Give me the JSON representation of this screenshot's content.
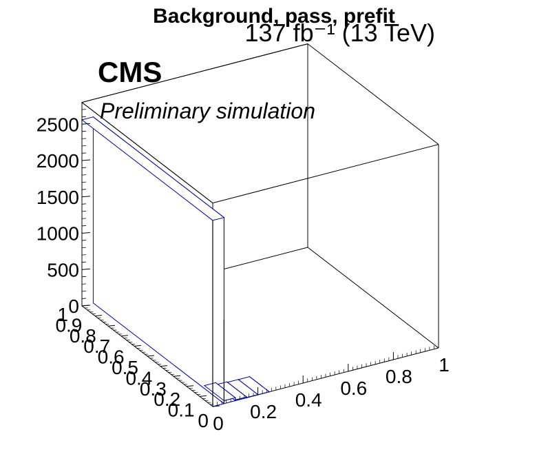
{
  "chart_data": {
    "type": "lego",
    "title": "Background, pass, prefit",
    "lumi_label": "137 fb⁻¹ (13 TeV)",
    "experiment": "CMS",
    "subtitle": "Preliminary simulation",
    "xlabel": "",
    "ylabel": "",
    "zlabel": "",
    "xlim": [
      0,
      1
    ],
    "ylim": [
      0,
      1
    ],
    "zlim": [
      0,
      2800
    ],
    "x_ticks": [
      "0",
      "0.2",
      "0.4",
      "0.6",
      "0.8",
      "1"
    ],
    "y_ticks": [
      "0",
      "0.1",
      "0.2",
      "0.3",
      "0.4",
      "0.5",
      "0.6",
      "0.7",
      "0.8",
      "0.9",
      "1"
    ],
    "z_ticks": [
      "0",
      "500",
      "1000",
      "1500",
      "2000",
      "2500"
    ],
    "grid": true,
    "colors": {
      "hist": "#0000aa",
      "frame": "#000000"
    },
    "bins": [
      {
        "x": [
          0.0,
          0.05
        ],
        "y": [
          0.0,
          1.0
        ],
        "z": 2560
      },
      {
        "x": [
          0.05,
          0.1
        ],
        "y": [
          0.0,
          0.15
        ],
        "z": 40
      },
      {
        "x": [
          0.1,
          0.15
        ],
        "y": [
          0.0,
          0.15
        ],
        "z": 10
      },
      {
        "x": [
          0.15,
          0.2
        ],
        "y": [
          0.0,
          0.15
        ],
        "z": 3
      },
      {
        "x": [
          0.2,
          0.25
        ],
        "y": [
          0.0,
          0.15
        ],
        "z": 1
      }
    ]
  }
}
